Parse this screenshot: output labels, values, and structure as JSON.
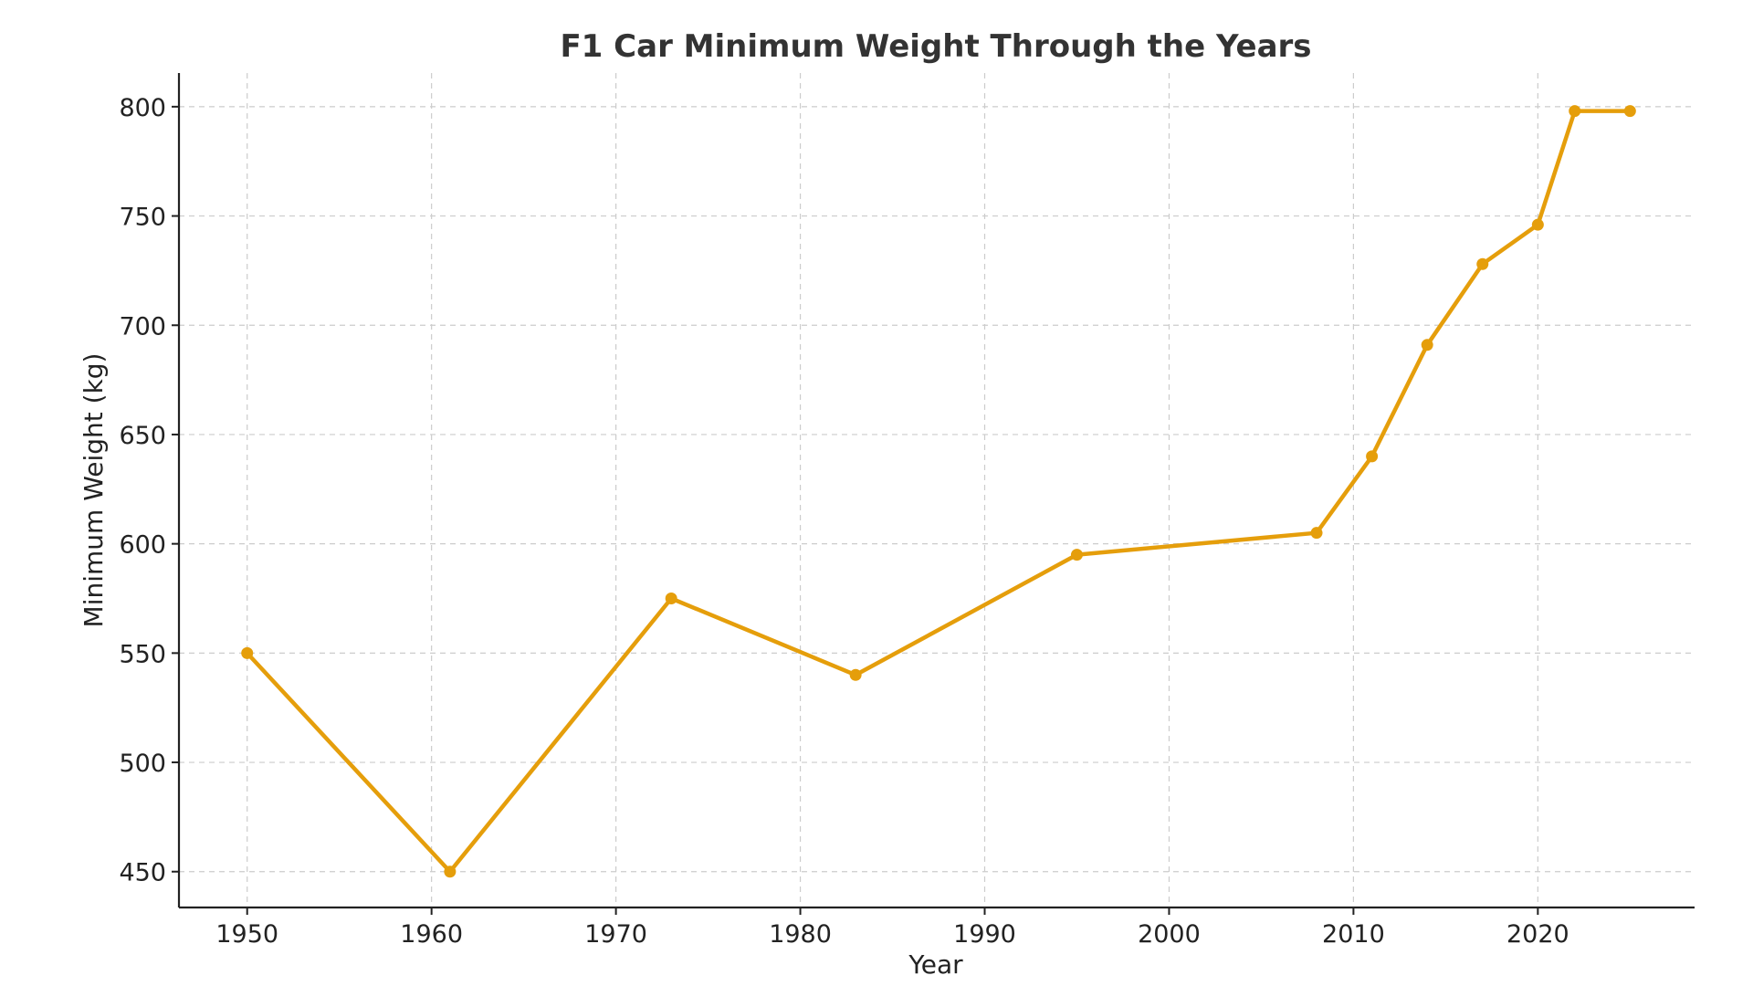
{
  "chart_data": {
    "type": "line",
    "title": "F1 Car Minimum Weight Through the Years",
    "xlabel": "Year",
    "ylabel": "Minimum Weight (kg)",
    "xlim": [
      1946.3,
      2028.5
    ],
    "ylim": [
      433.6,
      815.4
    ],
    "x_ticks": [
      1950,
      1960,
      1970,
      1980,
      1990,
      2000,
      2010,
      2020
    ],
    "y_ticks": [
      450,
      500,
      550,
      600,
      650,
      700,
      750,
      800
    ],
    "grid": true,
    "color": "#E59E0B",
    "series": [
      {
        "x": [
          1950,
          1961,
          1973,
          1983,
          1995,
          2008,
          2011,
          2014,
          2017,
          2020,
          2022,
          2025
        ],
        "y": [
          550,
          450,
          575,
          540,
          595,
          605,
          640,
          691,
          728,
          746,
          798,
          798
        ]
      }
    ]
  }
}
